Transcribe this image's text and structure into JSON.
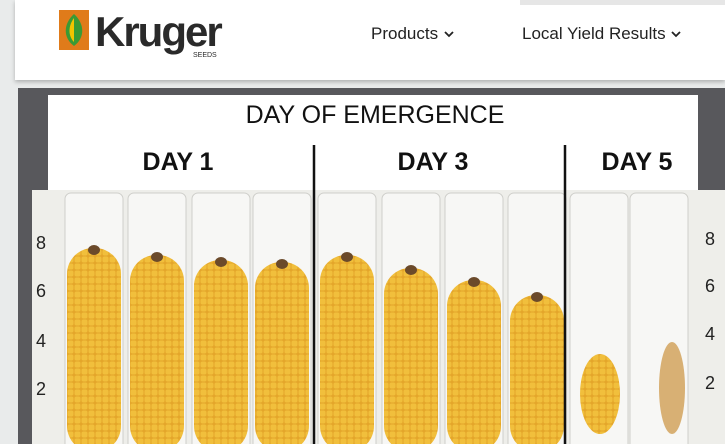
{
  "header": {
    "logo": {
      "name": "Kruger",
      "tagline": "SEEDS"
    },
    "nav": [
      {
        "label": "Products"
      },
      {
        "label": "Local Yield Results"
      }
    ]
  },
  "photo": {
    "title": "DAY OF EMERGENCE",
    "groups": [
      "DAY 1",
      "DAY 3",
      "DAY 5"
    ],
    "scale_left": [
      8,
      6,
      4,
      2
    ],
    "scale_right": [
      8,
      6,
      4,
      2
    ]
  }
}
